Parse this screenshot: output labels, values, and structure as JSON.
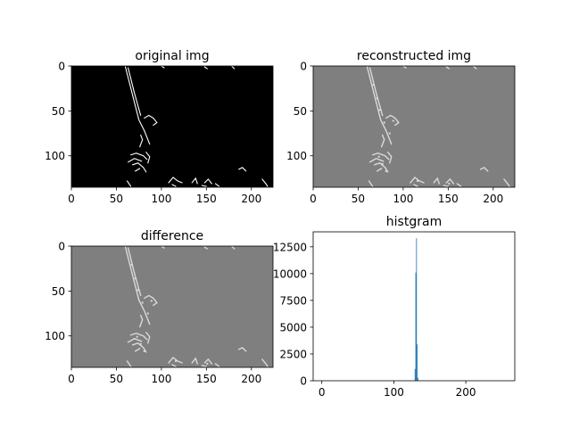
{
  "colors": {
    "background": "#ffffff",
    "axes_frame": "#000000",
    "black_image": "#000000",
    "gray_image": "#7f7f7f",
    "edge_white": "#ffffff",
    "edge_light": "#d9d9d9",
    "hist_bar": "#1f77b4"
  },
  "chart_data": [
    {
      "id": "original",
      "type": "image",
      "title": "original img",
      "image_size": [
        224,
        135
      ],
      "xlim": [
        0,
        224
      ],
      "ylim": [
        0,
        135
      ],
      "y_inverted": true,
      "xticks": [
        0,
        50,
        100,
        150,
        200
      ],
      "yticks": [
        0,
        50,
        100
      ],
      "background": "black",
      "edges": "white"
    },
    {
      "id": "reconstructed",
      "type": "image",
      "title": "reconstructed img",
      "image_size": [
        224,
        135
      ],
      "xlim": [
        0,
        224
      ],
      "ylim": [
        0,
        135
      ],
      "y_inverted": true,
      "xticks": [
        0,
        50,
        100,
        150,
        200
      ],
      "yticks": [
        0,
        50,
        100
      ],
      "background": "gray",
      "edges": "light"
    },
    {
      "id": "difference",
      "type": "image",
      "title": "difference",
      "image_size": [
        224,
        135
      ],
      "xlim": [
        0,
        224
      ],
      "ylim": [
        0,
        135
      ],
      "y_inverted": true,
      "xticks": [
        0,
        50,
        100,
        150,
        200
      ],
      "yticks": [
        0,
        50,
        100
      ],
      "background": "gray",
      "edges": "light"
    },
    {
      "id": "histogram",
      "type": "bar",
      "title": "histgram",
      "xlim": [
        -12,
        268
      ],
      "ylim": [
        0,
        13900
      ],
      "xticks": [
        0,
        100,
        200
      ],
      "yticks": [
        0,
        2500,
        5000,
        7500,
        10000,
        12500
      ],
      "ytick_labels": [
        "0",
        "2500",
        "5000",
        "7500",
        "10000",
        "12500"
      ],
      "bin_width": 1,
      "bins": [
        {
          "x": 129,
          "count": 1100
        },
        {
          "x": 130,
          "count": 10100
        },
        {
          "x": 131,
          "count": 13300
        },
        {
          "x": 132,
          "count": 3400
        },
        {
          "x": 133,
          "count": 300
        }
      ]
    }
  ]
}
